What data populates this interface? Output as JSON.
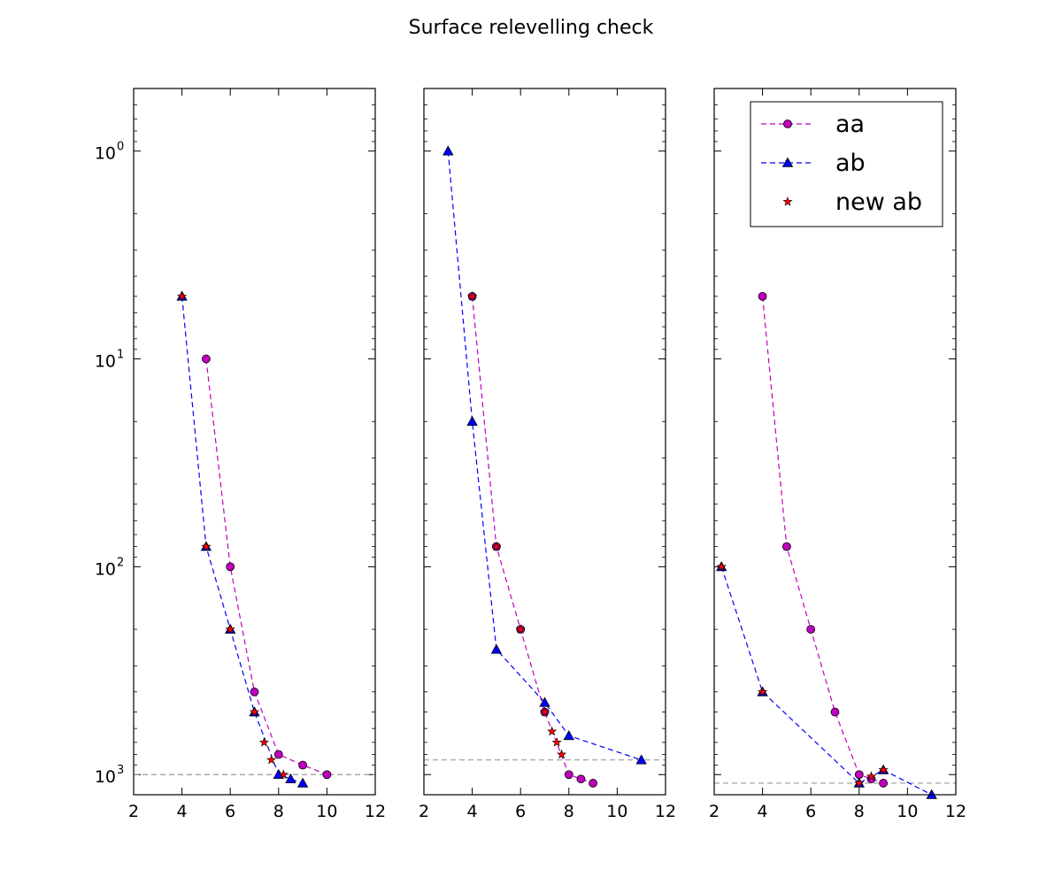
{
  "chart_data": {
    "type": "line",
    "title": "Surface relevelling check",
    "y_scale": "log",
    "y_inverted": true,
    "xlim": [
      2,
      12
    ],
    "ylim": [
      0.5,
      1250
    ],
    "x_ticks": [
      2,
      4,
      6,
      8,
      10,
      12
    ],
    "x_tick_labels": [
      "2",
      "4",
      "6",
      "8",
      "10",
      "12"
    ],
    "y_ticks": [
      1,
      10,
      100,
      1000
    ],
    "y_tick_labels": [
      "10",
      "10",
      "10",
      "10"
    ],
    "y_tick_exponents": [
      "0",
      "1",
      "2",
      "3"
    ],
    "legend": {
      "position": "upper-right",
      "panel": 2,
      "entries": [
        {
          "label": "aa",
          "series": "aa"
        },
        {
          "label": "ab",
          "series": "ab"
        },
        {
          "label": "new ab",
          "series": "new_ab"
        }
      ]
    },
    "series_styles": {
      "aa": {
        "color": "#bf00bf",
        "marker": "circle",
        "line": "dashed"
      },
      "ab": {
        "color": "#0000ff",
        "marker": "triangle",
        "line": "dashed"
      },
      "new_ab": {
        "color": "#ff0000",
        "marker": "star",
        "line": "none"
      }
    },
    "panels": [
      {
        "hline": 1000,
        "series": [
          {
            "key": "aa",
            "x": [
              5,
              6,
              7,
              8,
              9,
              10
            ],
            "y": [
              10,
              100,
              400,
              800,
              900,
              1000
            ]
          },
          {
            "key": "ab",
            "x": [
              4,
              5,
              6,
              7,
              8,
              8.5,
              9
            ],
            "y": [
              5,
              80,
              200,
              500,
              1000,
              1050,
              1100
            ]
          },
          {
            "key": "new_ab",
            "x": [
              4,
              5,
              6,
              7,
              7.4,
              7.7,
              8.2
            ],
            "y": [
              5,
              80,
              200,
              500,
              700,
              850,
              1000
            ]
          }
        ]
      },
      {
        "hline": 850,
        "series": [
          {
            "key": "aa",
            "x": [
              4,
              5,
              6,
              7,
              8,
              8.5,
              9
            ],
            "y": [
              5,
              80,
              200,
              500,
              1000,
              1050,
              1100
            ]
          },
          {
            "key": "ab",
            "x": [
              3,
              4,
              5,
              7,
              8,
              11
            ],
            "y": [
              1,
              20,
              250,
              450,
              650,
              850
            ]
          },
          {
            "key": "new_ab",
            "x": [
              4,
              5,
              6,
              7,
              7.3,
              7.5,
              7.7
            ],
            "y": [
              5,
              80,
              200,
              500,
              620,
              700,
              800
            ]
          }
        ]
      },
      {
        "hline": 1100,
        "series": [
          {
            "key": "aa",
            "x": [
              4,
              5,
              6,
              7,
              8,
              8.5,
              9
            ],
            "y": [
              5,
              80,
              200,
              500,
              1000,
              1050,
              1100
            ]
          },
          {
            "key": "ab",
            "x": [
              2.3,
              4,
              8,
              9,
              11
            ],
            "y": [
              100,
              400,
              1100,
              950,
              1250
            ]
          },
          {
            "key": "new_ab",
            "x": [
              2.3,
              4,
              8,
              8.5,
              9
            ],
            "y": [
              100,
              400,
              1100,
              1020,
              950
            ]
          }
        ]
      }
    ]
  }
}
